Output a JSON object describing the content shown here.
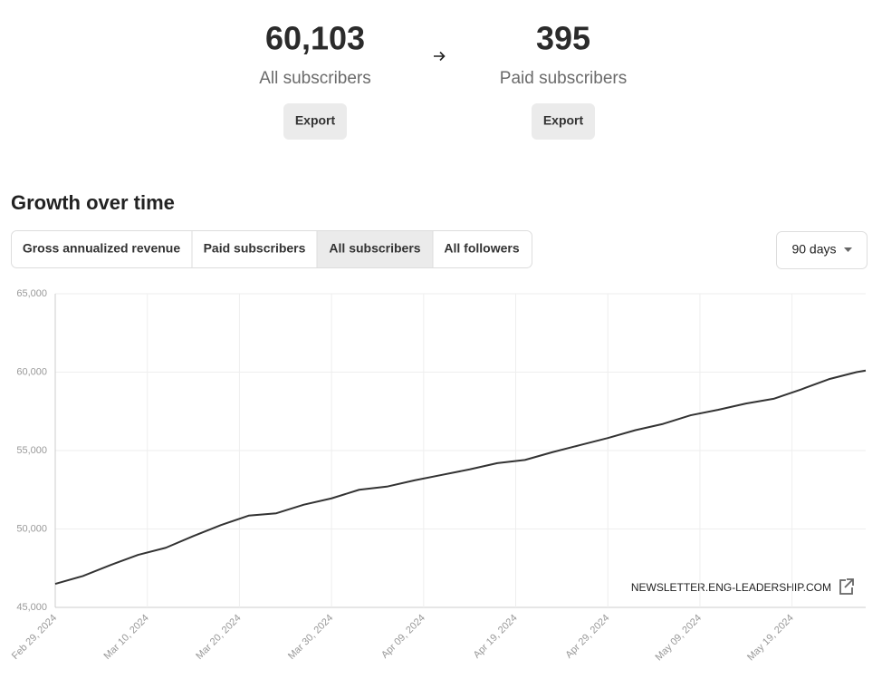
{
  "header": {
    "stats": [
      {
        "value": "60,103",
        "label": "All subscribers",
        "button": "Export"
      },
      {
        "value": "395",
        "label": "Paid subscribers",
        "button": "Export"
      }
    ]
  },
  "tabs": {
    "items": [
      "Gross annualized revenue",
      "Paid subscribers",
      "All subscribers",
      "All followers"
    ],
    "selected": 2
  },
  "range_select": "90 days",
  "watermark": "NEWSLETTER.ENG-LEADERSHIP.COM",
  "chart_data": {
    "type": "line",
    "title": "Growth over time",
    "x": [
      "2024-02-29",
      "2024-03-03",
      "2024-03-06",
      "2024-03-09",
      "2024-03-12",
      "2024-03-15",
      "2024-03-18",
      "2024-03-21",
      "2024-03-24",
      "2024-03-27",
      "2024-03-30",
      "2024-04-02",
      "2024-04-05",
      "2024-04-08",
      "2024-04-11",
      "2024-04-14",
      "2024-04-17",
      "2024-04-20",
      "2024-04-23",
      "2024-04-26",
      "2024-04-29",
      "2024-05-02",
      "2024-05-05",
      "2024-05-08",
      "2024-05-11",
      "2024-05-14",
      "2024-05-17",
      "2024-05-20",
      "2024-05-23",
      "2024-05-26",
      "2024-05-27"
    ],
    "series": [
      {
        "name": "All subscribers",
        "color": "#333333",
        "values": [
          46500,
          47000,
          47700,
          48350,
          48800,
          49550,
          50250,
          50850,
          51000,
          51550,
          51950,
          52500,
          52700,
          53100,
          53450,
          53800,
          54200,
          54400,
          54900,
          55350,
          55800,
          56300,
          56700,
          57250,
          57600,
          58000,
          58300,
          58900,
          59550,
          60000,
          60103
        ]
      }
    ],
    "xlim": [
      "2024-02-29",
      "2024-05-27"
    ],
    "xticks": [
      {
        "value": "2024-02-29",
        "label": "Feb 29, 2024"
      },
      {
        "value": "2024-03-10",
        "label": "Mar 10, 2024"
      },
      {
        "value": "2024-03-20",
        "label": "Mar 20, 2024"
      },
      {
        "value": "2024-03-30",
        "label": "Mar 30, 2024"
      },
      {
        "value": "2024-04-09",
        "label": "Apr 09, 2024"
      },
      {
        "value": "2024-04-19",
        "label": "Apr 19, 2024"
      },
      {
        "value": "2024-04-29",
        "label": "Apr 29, 2024"
      },
      {
        "value": "2024-05-09",
        "label": "May 09, 2024"
      },
      {
        "value": "2024-05-19",
        "label": "May 19, 2024"
      }
    ],
    "ylim": [
      45000,
      65000
    ],
    "yticks": [
      {
        "value": 45000,
        "label": "45,000"
      },
      {
        "value": 50000,
        "label": "50,000"
      },
      {
        "value": 55000,
        "label": "55,000"
      },
      {
        "value": 60000,
        "label": "60,000"
      },
      {
        "value": 65000,
        "label": "65,000"
      }
    ],
    "grid": true
  }
}
